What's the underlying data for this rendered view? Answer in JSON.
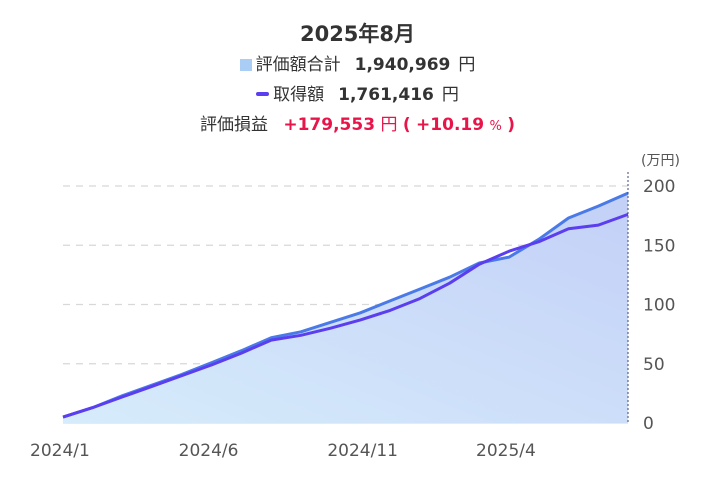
{
  "header": {
    "title": "2025年8月",
    "valuation_label": "評価額合計",
    "valuation_value": "1,940,969",
    "valuation_unit": "円",
    "cost_label": "取得額",
    "cost_value": "1,761,416",
    "cost_unit": "円",
    "gain_label": "評価損益",
    "gain_value": "+179,553",
    "gain_unit": "円",
    "gain_paren_open": "(",
    "gain_pct_value": "+10.19",
    "gain_pct_unit": "%",
    "gain_paren_close": ")"
  },
  "colors": {
    "area_line": "#4a7ae8",
    "area_fill_top": "#c3d0f7",
    "area_fill_bottom": "#d6ecfb",
    "cost_line": "#5a3ef0",
    "gain": "#e8154a",
    "grid": "#d8d8d8"
  },
  "chart_data": {
    "type": "area",
    "ylabel": "(万円)",
    "ylim": [
      0,
      200
    ],
    "yticks": [
      0,
      50,
      100,
      150,
      200
    ],
    "xticks": [
      "2024/1",
      "2024/6",
      "2024/11",
      "2025/4"
    ],
    "x": [
      "2024/1",
      "2024/2",
      "2024/3",
      "2024/4",
      "2024/5",
      "2024/6",
      "2024/7",
      "2024/8",
      "2024/9",
      "2024/10",
      "2024/11",
      "2024/12",
      "2025/1",
      "2025/2",
      "2025/3",
      "2025/4",
      "2025/5",
      "2025/6",
      "2025/7",
      "2025/8"
    ],
    "series": [
      {
        "name": "評価額合計",
        "style": "area",
        "values": [
          5,
          13,
          23,
          32,
          41,
          51,
          61,
          72,
          77,
          85,
          93,
          103,
          113,
          123,
          135,
          140,
          155,
          173,
          183,
          194
        ]
      },
      {
        "name": "取得額",
        "style": "line",
        "values": [
          5,
          13,
          22,
          31,
          40,
          49,
          59,
          70,
          74,
          80,
          87,
          95,
          105,
          118,
          134,
          145,
          153,
          164,
          167,
          176
        ]
      }
    ]
  }
}
